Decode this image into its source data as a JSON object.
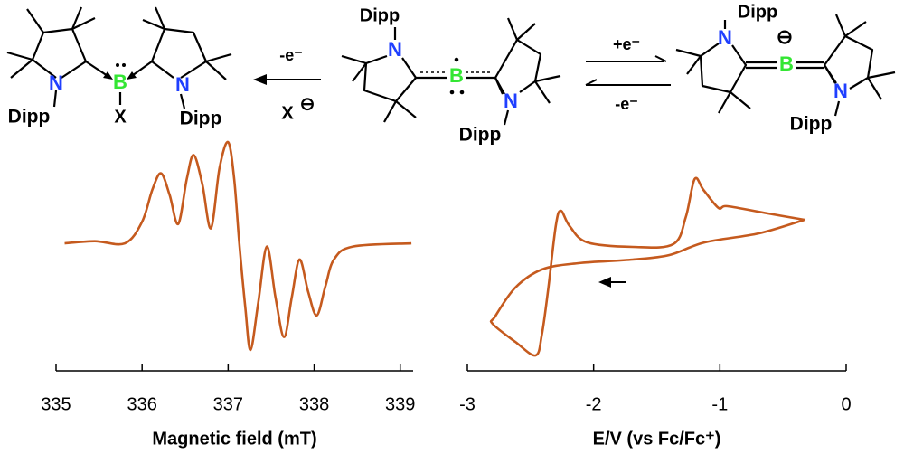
{
  "scheme": {
    "labels": [
      "N",
      "Dipp",
      "B",
      "X",
      "N",
      "Dipp",
      "-e⁻",
      "X",
      "⊖",
      "Dipp",
      "N",
      "B",
      "N",
      "Dipp",
      "+e⁻",
      "-e⁻",
      "Dipp",
      "N",
      "⊖",
      "B",
      "N",
      "Dipp"
    ]
  },
  "chart_data": [
    {
      "type": "line",
      "xlabel": "Magnetic field (mT)",
      "color": "#c55a1e",
      "x": [
        335.1,
        335.45,
        335.8,
        336.0,
        336.12,
        336.22,
        336.32,
        336.42,
        336.52,
        336.6,
        336.7,
        336.8,
        336.9,
        337.0,
        337.07,
        337.13,
        337.2,
        337.26,
        337.35,
        337.45,
        337.55,
        337.65,
        337.74,
        337.83,
        337.93,
        338.03,
        338.13,
        338.23,
        338.45,
        339.13
      ],
      "values": [
        0,
        0.02,
        0,
        0.2,
        0.5,
        0.65,
        0.45,
        0.18,
        0.6,
        0.82,
        0.55,
        0.14,
        0.7,
        0.94,
        0.6,
        0.0,
        -0.6,
        -0.99,
        -0.55,
        -0.03,
        -0.5,
        -0.87,
        -0.5,
        -0.15,
        -0.45,
        -0.67,
        -0.4,
        -0.15,
        -0.03,
        0
      ],
      "xlim": [
        335,
        339.15
      ],
      "ylim": [
        -1.1,
        1.0
      ],
      "xticks": [
        335,
        336,
        337,
        338,
        339
      ]
    },
    {
      "type": "line",
      "xlabel": "E/V (vs Fc/Fc⁺)",
      "color": "#c55a1e",
      "x": [
        -0.33,
        -0.69,
        -1.12,
        -1.4,
        -1.69,
        -2.12,
        -2.41,
        -2.62,
        -2.78,
        -2.8,
        -2.62,
        -2.46,
        -2.41,
        -2.36,
        -2.3,
        -2.26,
        -2.19,
        -2.05,
        -1.69,
        -1.37,
        -1.27,
        -1.2,
        -1.13,
        -1.01,
        -0.94,
        -0.62,
        -0.33
      ],
      "values": [
        0.57,
        0.42,
        0.32,
        0.18,
        0.13,
        0.09,
        0.02,
        -0.18,
        -0.5,
        -0.58,
        -0.78,
        -0.93,
        -0.7,
        -0.2,
        0.5,
        0.67,
        0.5,
        0.32,
        0.27,
        0.3,
        0.6,
        1.02,
        0.9,
        0.7,
        0.72,
        0.64,
        0.57
      ],
      "xlim": [
        -3,
        0
      ],
      "ylim": [
        -1.1,
        1.2
      ],
      "xticks": [
        -3,
        -2,
        -1,
        0
      ]
    }
  ]
}
